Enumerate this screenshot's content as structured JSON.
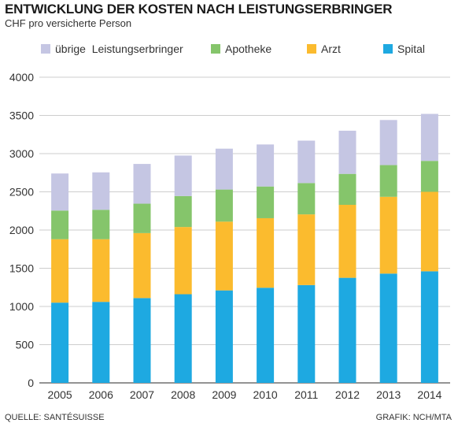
{
  "header": {
    "title": "ENTWICKLUNG DER KOSTEN NACH LEISTUNGSERBRINGER",
    "subtitle": "CHF pro versicherte Person"
  },
  "footer": {
    "source": "QUELLE: SANTÉSUISSE",
    "credit": "GRAFIK: NCH/MTA"
  },
  "chart_data": {
    "type": "bar",
    "stacked": true,
    "categories": [
      "2005",
      "2006",
      "2007",
      "2008",
      "2009",
      "2010",
      "2011",
      "2012",
      "2013",
      "2014"
    ],
    "series": [
      {
        "name": "Spital",
        "color": "#1ea9e1",
        "values": [
          1050,
          1060,
          1110,
          1160,
          1210,
          1245,
          1280,
          1375,
          1430,
          1460
        ]
      },
      {
        "name": "Arzt",
        "color": "#fbbb2e",
        "values": [
          830,
          820,
          850,
          880,
          900,
          910,
          925,
          955,
          1005,
          1040
        ]
      },
      {
        "name": "Apotheke",
        "color": "#85c56b",
        "values": [
          375,
          385,
          385,
          405,
          420,
          415,
          410,
          405,
          415,
          405
        ]
      },
      {
        "name": "übrige  Leistungserbringer",
        "color": "#c5c6e3",
        "values": [
          485,
          490,
          520,
          530,
          535,
          550,
          555,
          565,
          590,
          615
        ]
      }
    ],
    "legend_order": [
      "übrige  Leistungserbringer",
      "Apotheke",
      "Arzt",
      "Spital"
    ],
    "legend_position": "top",
    "ylim": [
      0,
      4000
    ],
    "yticks": [
      0,
      500,
      1000,
      1500,
      2000,
      2500,
      3000,
      3500,
      4000
    ],
    "grid": true
  }
}
